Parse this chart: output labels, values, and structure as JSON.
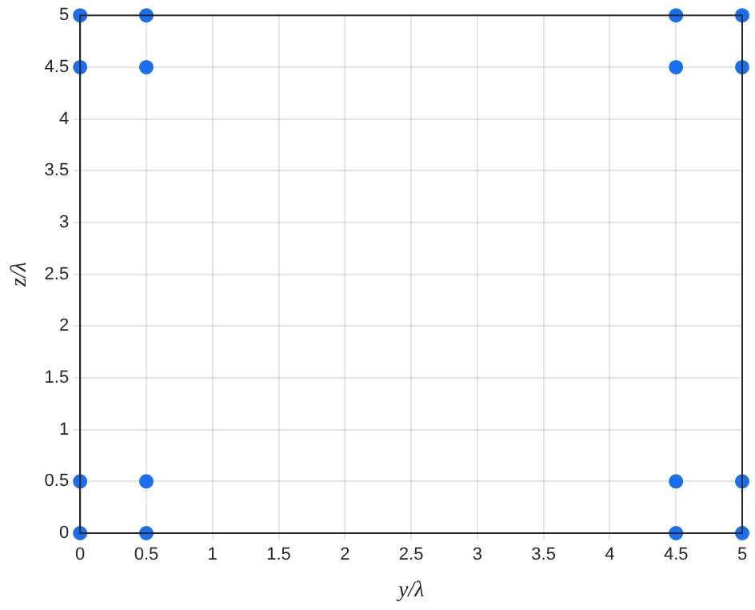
{
  "chart_data": {
    "type": "scatter",
    "xlabel": "y/λ",
    "ylabel": "z/λ",
    "x": [
      0,
      0.5,
      0,
      0.5,
      0,
      0,
      0.5,
      0.5,
      4.5,
      5,
      4.5,
      5,
      4.5,
      4.5,
      5,
      5
    ],
    "values": [
      0,
      0,
      0.5,
      0.5,
      4.5,
      5,
      4.5,
      5,
      0,
      0,
      0.5,
      0.5,
      4.5,
      5,
      4.5,
      5
    ],
    "color": "#1a6ff0",
    "marker": "circle",
    "grid": true,
    "xlim": [
      0,
      5
    ],
    "ylim": [
      0,
      5
    ],
    "xticks": [
      0,
      0.5,
      1,
      1.5,
      2,
      2.5,
      3,
      3.5,
      4,
      4.5,
      5
    ],
    "yticks": [
      0,
      0.5,
      1,
      1.5,
      2,
      2.5,
      3,
      3.5,
      4,
      4.5,
      5
    ]
  }
}
